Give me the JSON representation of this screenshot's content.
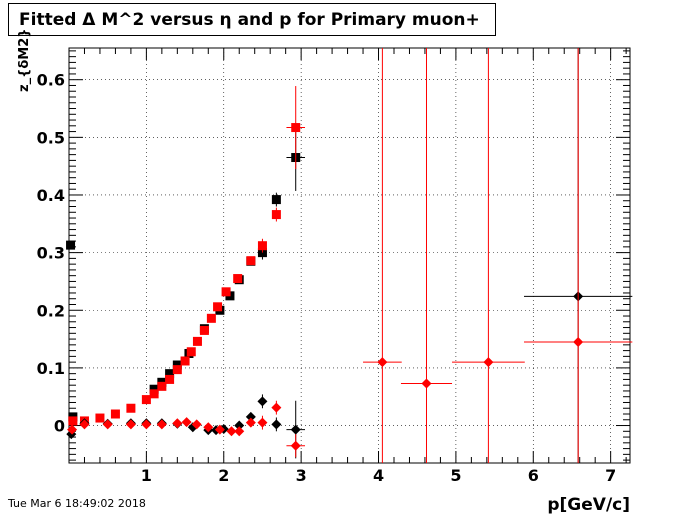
{
  "title": "Fitted Δ M^2 versus η and p for Primary muon+",
  "footer": "Tue Mar  6 18:49:02 2018",
  "chart_data": {
    "type": "scatter",
    "xlabel": "p[GeV/c]",
    "ylabel": "z_{δM2}",
    "xlim": [
      0.0,
      7.25
    ],
    "ylim": [
      -0.065,
      0.655
    ],
    "x_ticks": [
      1,
      2,
      3,
      4,
      5,
      6,
      7
    ],
    "y_ticks": [
      0,
      0.1,
      0.2,
      0.3,
      0.4,
      0.5,
      0.6
    ],
    "grid": true,
    "series": [
      {
        "color": "#000000",
        "marker": "square",
        "points": [
          {
            "x": 0.02,
            "y": 0.313
          },
          {
            "x": 0.05,
            "y": 0.015
          },
          {
            "x": 1.1,
            "y": 0.063
          },
          {
            "x": 1.2,
            "y": 0.075
          },
          {
            "x": 1.3,
            "y": 0.09
          },
          {
            "x": 1.4,
            "y": 0.105
          },
          {
            "x": 1.55,
            "y": 0.125
          },
          {
            "x": 1.75,
            "y": 0.168
          },
          {
            "x": 1.95,
            "y": 0.2
          },
          {
            "x": 2.08,
            "y": 0.225
          },
          {
            "x": 2.2,
            "y": 0.253
          },
          {
            "x": 2.35,
            "y": 0.285
          },
          {
            "x": 2.5,
            "y": 0.3,
            "ey": 0.012
          },
          {
            "x": 2.68,
            "y": 0.392,
            "ey": 0.012
          },
          {
            "x": 2.93,
            "y": 0.465,
            "ey": 0.058,
            "ex": 0.12
          }
        ]
      },
      {
        "color": "#ff0000",
        "marker": "square",
        "points": [
          {
            "x": 0.05,
            "y": 0.008
          },
          {
            "x": 0.2,
            "y": 0.008
          },
          {
            "x": 0.4,
            "y": 0.013
          },
          {
            "x": 0.6,
            "y": 0.02
          },
          {
            "x": 0.8,
            "y": 0.03
          },
          {
            "x": 1.0,
            "y": 0.045
          },
          {
            "x": 1.1,
            "y": 0.055
          },
          {
            "x": 1.2,
            "y": 0.068
          },
          {
            "x": 1.3,
            "y": 0.08
          },
          {
            "x": 1.4,
            "y": 0.097
          },
          {
            "x": 1.5,
            "y": 0.112
          },
          {
            "x": 1.58,
            "y": 0.128
          },
          {
            "x": 1.66,
            "y": 0.146
          },
          {
            "x": 1.75,
            "y": 0.165
          },
          {
            "x": 1.84,
            "y": 0.186
          },
          {
            "x": 1.92,
            "y": 0.206
          },
          {
            "x": 2.03,
            "y": 0.232
          },
          {
            "x": 2.18,
            "y": 0.255
          },
          {
            "x": 2.35,
            "y": 0.286
          },
          {
            "x": 2.5,
            "y": 0.312,
            "ey": 0.012
          },
          {
            "x": 2.68,
            "y": 0.366,
            "ey": 0.012
          },
          {
            "x": 2.93,
            "y": 0.517,
            "ey": 0.072,
            "ex": 0.12
          }
        ]
      },
      {
        "color": "#000000",
        "marker": "diamond",
        "points": [
          {
            "x": 0.03,
            "y": -0.015
          },
          {
            "x": 0.2,
            "y": 0.004
          },
          {
            "x": 0.5,
            "y": 0.003
          },
          {
            "x": 0.8,
            "y": 0.004
          },
          {
            "x": 1.0,
            "y": 0.004
          },
          {
            "x": 1.2,
            "y": 0.004
          },
          {
            "x": 1.4,
            "y": 0.003
          },
          {
            "x": 1.6,
            "y": -0.003
          },
          {
            "x": 1.8,
            "y": -0.008
          },
          {
            "x": 1.9,
            "y": -0.008
          },
          {
            "x": 2.0,
            "y": -0.006
          },
          {
            "x": 2.2,
            "y": 0.0
          },
          {
            "x": 2.35,
            "y": 0.015
          },
          {
            "x": 2.5,
            "y": 0.042,
            "ey": 0.012
          },
          {
            "x": 2.68,
            "y": 0.002,
            "ey": 0.012
          },
          {
            "x": 2.93,
            "y": -0.007,
            "ey": 0.05,
            "ex": 0.12
          },
          {
            "x": 6.58,
            "y": 0.224,
            "ey": 1.0,
            "ex": 0.7
          }
        ]
      },
      {
        "color": "#ff0000",
        "marker": "diamond",
        "points": [
          {
            "x": 0.04,
            "y": -0.007
          },
          {
            "x": 0.2,
            "y": 0.002
          },
          {
            "x": 0.5,
            "y": 0.002
          },
          {
            "x": 0.8,
            "y": 0.002
          },
          {
            "x": 1.0,
            "y": 0.002
          },
          {
            "x": 1.2,
            "y": 0.002
          },
          {
            "x": 1.4,
            "y": 0.004
          },
          {
            "x": 1.52,
            "y": 0.006
          },
          {
            "x": 1.65,
            "y": 0.002
          },
          {
            "x": 1.8,
            "y": -0.003
          },
          {
            "x": 1.95,
            "y": -0.007
          },
          {
            "x": 2.1,
            "y": -0.01
          },
          {
            "x": 2.2,
            "y": -0.01
          },
          {
            "x": 2.35,
            "y": 0.005
          },
          {
            "x": 2.5,
            "y": 0.005,
            "ey": 0.012
          },
          {
            "x": 2.68,
            "y": 0.031,
            "ey": 0.012
          },
          {
            "x": 2.93,
            "y": -0.035,
            "ey": 0.02,
            "ex": 0.12
          },
          {
            "x": 4.05,
            "y": 0.11,
            "ey": 1.0,
            "ex": 0.25
          },
          {
            "x": 4.62,
            "y": 0.073,
            "ey": 1.0,
            "ex": 0.33
          },
          {
            "x": 5.42,
            "y": 0.11,
            "ey": 1.0,
            "ex": 0.47
          },
          {
            "x": 6.58,
            "y": 0.145,
            "ey": 1.0,
            "ex": 0.7
          }
        ]
      }
    ]
  }
}
